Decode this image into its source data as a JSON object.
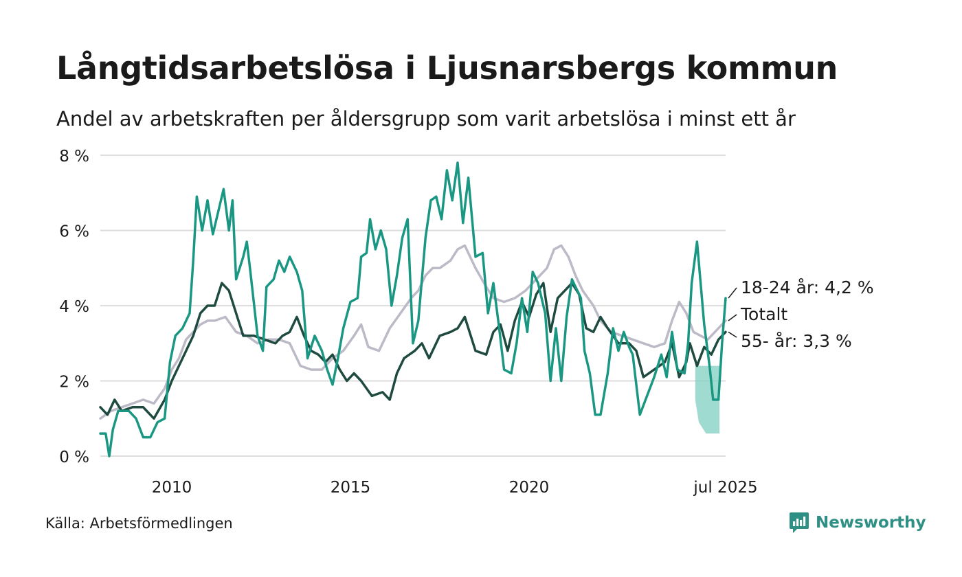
{
  "header": {
    "title": "Långtidsarbetslösa i Ljusnarsbergs kommun",
    "subtitle": "Andel av arbetskraften per åldersgrupp som varit arbetslösa i minst ett år"
  },
  "footer": {
    "source": "Källa: Arbetsförmedlingen",
    "brand": "Newsworthy"
  },
  "colors": {
    "youth": "#1a9783",
    "senior": "#1f4a40",
    "total": "#bdbac8",
    "band": "#7fcfc0",
    "grid": "#dddddd",
    "brand": "#2e8f85"
  },
  "chart_data": {
    "type": "line",
    "x_unit": "year (fractional)",
    "xlim": [
      2008.0,
      2025.5
    ],
    "ylim": [
      0,
      8
    ],
    "ytick_labels": [
      "0 %",
      "2 %",
      "4 %",
      "6 %",
      "8 %"
    ],
    "yticks": [
      0,
      2,
      4,
      6,
      8
    ],
    "xtick_labels": [
      "2010",
      "2015",
      "2020",
      "jul 2025"
    ],
    "xticks": [
      2010,
      2015,
      2020,
      2025.5
    ],
    "grid": true,
    "series": [
      {
        "key": "total",
        "label": "Totalt",
        "end_label": "Totalt",
        "points": [
          [
            2008.0,
            1.0
          ],
          [
            2008.3,
            1.2
          ],
          [
            2008.6,
            1.3
          ],
          [
            2008.9,
            1.4
          ],
          [
            2009.2,
            1.5
          ],
          [
            2009.5,
            1.4
          ],
          [
            2009.8,
            1.8
          ],
          [
            2010.0,
            2.3
          ],
          [
            2010.2,
            2.6
          ],
          [
            2010.4,
            3.1
          ],
          [
            2010.6,
            3.3
          ],
          [
            2010.8,
            3.5
          ],
          [
            2011.0,
            3.6
          ],
          [
            2011.2,
            3.6
          ],
          [
            2011.5,
            3.7
          ],
          [
            2011.8,
            3.3
          ],
          [
            2012.1,
            3.2
          ],
          [
            2012.4,
            3.0
          ],
          [
            2012.7,
            3.1
          ],
          [
            2013.0,
            3.1
          ],
          [
            2013.3,
            3.0
          ],
          [
            2013.6,
            2.4
          ],
          [
            2013.9,
            2.3
          ],
          [
            2014.2,
            2.3
          ],
          [
            2014.5,
            2.6
          ],
          [
            2014.8,
            2.8
          ],
          [
            2015.1,
            3.2
          ],
          [
            2015.3,
            3.5
          ],
          [
            2015.5,
            2.9
          ],
          [
            2015.8,
            2.8
          ],
          [
            2016.1,
            3.4
          ],
          [
            2016.4,
            3.8
          ],
          [
            2016.7,
            4.2
          ],
          [
            2016.9,
            4.4
          ],
          [
            2017.1,
            4.8
          ],
          [
            2017.3,
            5.0
          ],
          [
            2017.5,
            5.0
          ],
          [
            2017.8,
            5.2
          ],
          [
            2018.0,
            5.5
          ],
          [
            2018.2,
            5.6
          ],
          [
            2018.5,
            5.0
          ],
          [
            2018.8,
            4.5
          ],
          [
            2019.0,
            4.2
          ],
          [
            2019.3,
            4.1
          ],
          [
            2019.6,
            4.2
          ],
          [
            2019.9,
            4.4
          ],
          [
            2020.2,
            4.7
          ],
          [
            2020.5,
            5.0
          ],
          [
            2020.7,
            5.5
          ],
          [
            2020.9,
            5.6
          ],
          [
            2021.1,
            5.3
          ],
          [
            2021.3,
            4.8
          ],
          [
            2021.5,
            4.4
          ],
          [
            2021.8,
            4.0
          ],
          [
            2022.0,
            3.6
          ],
          [
            2022.3,
            3.3
          ],
          [
            2022.6,
            3.2
          ],
          [
            2022.9,
            3.1
          ],
          [
            2023.2,
            3.0
          ],
          [
            2023.5,
            2.9
          ],
          [
            2023.8,
            3.0
          ],
          [
            2024.0,
            3.6
          ],
          [
            2024.2,
            4.1
          ],
          [
            2024.4,
            3.8
          ],
          [
            2024.6,
            3.3
          ],
          [
            2024.8,
            3.2
          ],
          [
            2025.0,
            3.1
          ],
          [
            2025.2,
            3.3
          ],
          [
            2025.5,
            3.6
          ]
        ]
      },
      {
        "key": "senior",
        "label": "55- år",
        "end_label": "55- år: 3,3 %",
        "points": [
          [
            2008.0,
            1.3
          ],
          [
            2008.2,
            1.1
          ],
          [
            2008.4,
            1.5
          ],
          [
            2008.6,
            1.2
          ],
          [
            2008.9,
            1.3
          ],
          [
            2009.2,
            1.3
          ],
          [
            2009.5,
            1.0
          ],
          [
            2009.8,
            1.5
          ],
          [
            2010.0,
            2.0
          ],
          [
            2010.2,
            2.4
          ],
          [
            2010.4,
            2.8
          ],
          [
            2010.6,
            3.2
          ],
          [
            2010.8,
            3.8
          ],
          [
            2011.0,
            4.0
          ],
          [
            2011.2,
            4.0
          ],
          [
            2011.4,
            4.6
          ],
          [
            2011.6,
            4.4
          ],
          [
            2011.8,
            3.8
          ],
          [
            2012.0,
            3.2
          ],
          [
            2012.3,
            3.2
          ],
          [
            2012.6,
            3.1
          ],
          [
            2012.9,
            3.0
          ],
          [
            2013.1,
            3.2
          ],
          [
            2013.3,
            3.3
          ],
          [
            2013.5,
            3.7
          ],
          [
            2013.7,
            3.2
          ],
          [
            2013.9,
            2.8
          ],
          [
            2014.1,
            2.7
          ],
          [
            2014.3,
            2.5
          ],
          [
            2014.5,
            2.7
          ],
          [
            2014.7,
            2.3
          ],
          [
            2014.9,
            2.0
          ],
          [
            2015.1,
            2.2
          ],
          [
            2015.3,
            2.0
          ],
          [
            2015.6,
            1.6
          ],
          [
            2015.9,
            1.7
          ],
          [
            2016.1,
            1.5
          ],
          [
            2016.3,
            2.2
          ],
          [
            2016.5,
            2.6
          ],
          [
            2016.8,
            2.8
          ],
          [
            2017.0,
            3.0
          ],
          [
            2017.2,
            2.6
          ],
          [
            2017.5,
            3.2
          ],
          [
            2017.8,
            3.3
          ],
          [
            2018.0,
            3.4
          ],
          [
            2018.2,
            3.7
          ],
          [
            2018.5,
            2.8
          ],
          [
            2018.8,
            2.7
          ],
          [
            2019.0,
            3.3
          ],
          [
            2019.2,
            3.5
          ],
          [
            2019.4,
            2.8
          ],
          [
            2019.6,
            3.6
          ],
          [
            2019.8,
            4.1
          ],
          [
            2020.0,
            3.7
          ],
          [
            2020.2,
            4.3
          ],
          [
            2020.4,
            4.6
          ],
          [
            2020.6,
            3.3
          ],
          [
            2020.8,
            4.2
          ],
          [
            2021.0,
            4.4
          ],
          [
            2021.2,
            4.6
          ],
          [
            2021.4,
            4.3
          ],
          [
            2021.6,
            3.4
          ],
          [
            2021.8,
            3.3
          ],
          [
            2022.0,
            3.7
          ],
          [
            2022.2,
            3.4
          ],
          [
            2022.5,
            3.0
          ],
          [
            2022.8,
            3.0
          ],
          [
            2023.0,
            2.8
          ],
          [
            2023.2,
            2.1
          ],
          [
            2023.5,
            2.3
          ],
          [
            2023.8,
            2.5
          ],
          [
            2024.0,
            3.0
          ],
          [
            2024.2,
            2.1
          ],
          [
            2024.4,
            2.5
          ],
          [
            2024.5,
            3.0
          ],
          [
            2024.7,
            2.4
          ],
          [
            2024.9,
            2.9
          ],
          [
            2025.1,
            2.7
          ],
          [
            2025.3,
            3.1
          ],
          [
            2025.5,
            3.3
          ]
        ]
      },
      {
        "key": "youth",
        "label": "18-24 år",
        "end_label": "18-24 år: 4,2 %",
        "points": [
          [
            2008.0,
            0.6
          ],
          [
            2008.15,
            0.6
          ],
          [
            2008.25,
            0.0
          ],
          [
            2008.35,
            0.7
          ],
          [
            2008.5,
            1.2
          ],
          [
            2008.8,
            1.2
          ],
          [
            2009.0,
            1.0
          ],
          [
            2009.2,
            0.5
          ],
          [
            2009.4,
            0.5
          ],
          [
            2009.6,
            0.9
          ],
          [
            2009.8,
            1.0
          ],
          [
            2009.95,
            2.5
          ],
          [
            2010.1,
            3.2
          ],
          [
            2010.3,
            3.4
          ],
          [
            2010.5,
            3.8
          ],
          [
            2010.6,
            5.2
          ],
          [
            2010.7,
            6.9
          ],
          [
            2010.85,
            6.0
          ],
          [
            2011.0,
            6.8
          ],
          [
            2011.15,
            5.9
          ],
          [
            2011.3,
            6.5
          ],
          [
            2011.45,
            7.1
          ],
          [
            2011.6,
            6.0
          ],
          [
            2011.7,
            6.8
          ],
          [
            2011.8,
            4.7
          ],
          [
            2012.0,
            5.3
          ],
          [
            2012.1,
            5.7
          ],
          [
            2012.2,
            4.9
          ],
          [
            2012.4,
            3.2
          ],
          [
            2012.55,
            2.8
          ],
          [
            2012.65,
            4.5
          ],
          [
            2012.85,
            4.7
          ],
          [
            2013.0,
            5.2
          ],
          [
            2013.15,
            4.9
          ],
          [
            2013.3,
            5.3
          ],
          [
            2013.5,
            4.9
          ],
          [
            2013.65,
            4.4
          ],
          [
            2013.8,
            2.6
          ],
          [
            2014.0,
            3.2
          ],
          [
            2014.2,
            2.8
          ],
          [
            2014.35,
            2.3
          ],
          [
            2014.5,
            1.9
          ],
          [
            2014.65,
            2.6
          ],
          [
            2014.8,
            3.4
          ],
          [
            2015.0,
            4.1
          ],
          [
            2015.2,
            4.2
          ],
          [
            2015.3,
            5.3
          ],
          [
            2015.45,
            5.4
          ],
          [
            2015.55,
            6.3
          ],
          [
            2015.7,
            5.5
          ],
          [
            2015.85,
            6.0
          ],
          [
            2016.0,
            5.5
          ],
          [
            2016.15,
            4.0
          ],
          [
            2016.3,
            4.8
          ],
          [
            2016.45,
            5.8
          ],
          [
            2016.6,
            6.3
          ],
          [
            2016.75,
            3.0
          ],
          [
            2016.9,
            3.6
          ],
          [
            2017.1,
            5.8
          ],
          [
            2017.25,
            6.8
          ],
          [
            2017.4,
            6.9
          ],
          [
            2017.55,
            6.3
          ],
          [
            2017.7,
            7.6
          ],
          [
            2017.85,
            6.8
          ],
          [
            2018.0,
            7.8
          ],
          [
            2018.15,
            6.2
          ],
          [
            2018.3,
            7.4
          ],
          [
            2018.5,
            5.3
          ],
          [
            2018.7,
            5.4
          ],
          [
            2018.85,
            3.8
          ],
          [
            2019.0,
            4.6
          ],
          [
            2019.15,
            3.5
          ],
          [
            2019.3,
            2.3
          ],
          [
            2019.5,
            2.2
          ],
          [
            2019.65,
            3.0
          ],
          [
            2019.8,
            4.2
          ],
          [
            2019.95,
            3.3
          ],
          [
            2020.1,
            4.9
          ],
          [
            2020.25,
            4.6
          ],
          [
            2020.45,
            3.8
          ],
          [
            2020.6,
            2.0
          ],
          [
            2020.75,
            3.4
          ],
          [
            2020.9,
            2.0
          ],
          [
            2021.05,
            3.7
          ],
          [
            2021.2,
            4.7
          ],
          [
            2021.45,
            4.2
          ],
          [
            2021.55,
            2.8
          ],
          [
            2021.7,
            2.2
          ],
          [
            2021.85,
            1.1
          ],
          [
            2022.0,
            1.1
          ],
          [
            2022.2,
            2.2
          ],
          [
            2022.35,
            3.4
          ],
          [
            2022.5,
            2.8
          ],
          [
            2022.65,
            3.3
          ],
          [
            2022.8,
            2.9
          ],
          [
            2022.9,
            2.7
          ],
          [
            2023.1,
            1.1
          ],
          [
            2023.3,
            1.6
          ],
          [
            2023.5,
            2.1
          ],
          [
            2023.7,
            2.7
          ],
          [
            2023.85,
            2.1
          ],
          [
            2024.0,
            3.3
          ],
          [
            2024.15,
            2.3
          ],
          [
            2024.35,
            2.2
          ],
          [
            2024.45,
            3.0
          ],
          [
            2024.55,
            4.6
          ],
          [
            2024.7,
            5.7
          ],
          [
            2024.8,
            4.6
          ],
          [
            2024.9,
            3.5
          ],
          [
            2025.05,
            2.4
          ],
          [
            2025.15,
            1.5
          ],
          [
            2025.3,
            1.5
          ],
          [
            2025.4,
            3.0
          ],
          [
            2025.5,
            4.2
          ]
        ]
      }
    ],
    "uncertainty_band": {
      "series": "youth",
      "points": [
        [
          2024.65,
          1.5,
          2.5
        ],
        [
          2024.75,
          0.9,
          2.4
        ],
        [
          2024.95,
          0.6,
          2.4
        ],
        [
          2025.25,
          0.6,
          2.4
        ],
        [
          2025.33,
          0.6,
          2.4
        ]
      ]
    }
  }
}
